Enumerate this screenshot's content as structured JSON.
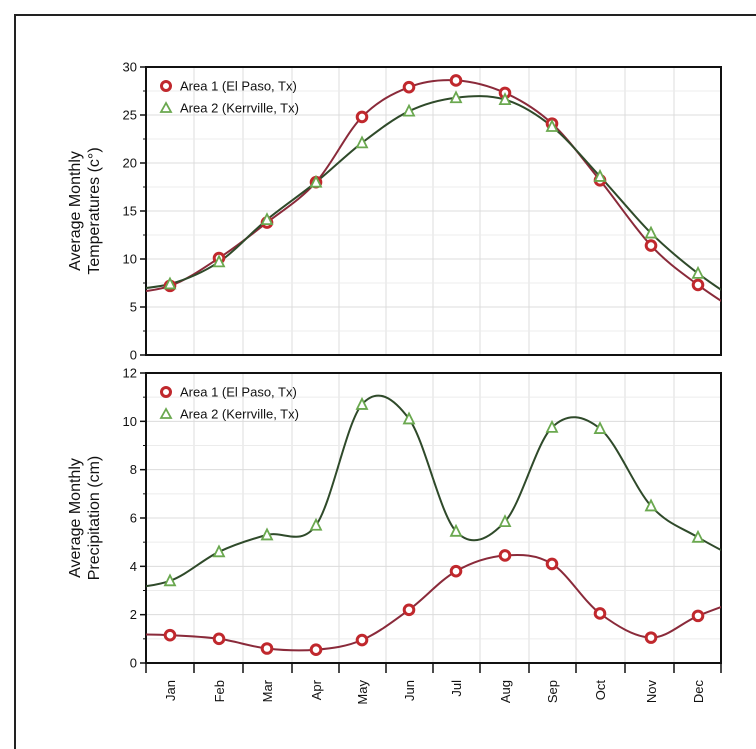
{
  "chart_data": [
    {
      "type": "line",
      "ylabel": "Average Monthly\nTemperatures (c°)",
      "ylim": [
        0,
        30
      ],
      "yticks": [
        0,
        5,
        10,
        15,
        20,
        25,
        30
      ],
      "grid": true,
      "legend": "top-left",
      "categories": [
        "Jan",
        "Feb",
        "Mar",
        "Apr",
        "May",
        "Jun",
        "Jul",
        "Aug",
        "Sep",
        "Oct",
        "Nov",
        "Dec"
      ],
      "series": [
        {
          "name": "Area 1 (El Paso, Tx)",
          "marker": "circle",
          "color": "#c0282d",
          "line_color": "#8a2a3a",
          "values": [
            7.2,
            10.1,
            13.8,
            18.0,
            24.8,
            27.9,
            28.6,
            27.3,
            24.1,
            18.2,
            11.4,
            7.3
          ]
        },
        {
          "name": "Area 2 (Kerrville, Tx)",
          "marker": "triangle",
          "color": "#6aa84f",
          "line_color": "#2f4a2a",
          "values": [
            7.4,
            9.7,
            14.1,
            18.0,
            22.1,
            25.4,
            26.8,
            26.6,
            23.8,
            18.6,
            12.7,
            8.5
          ]
        }
      ]
    },
    {
      "type": "line",
      "ylabel": "Average Monthly\nPrecipitation (cm)",
      "ylim": [
        0,
        12
      ],
      "yticks": [
        0,
        2,
        4,
        6,
        8,
        10,
        12
      ],
      "grid": true,
      "legend": "top-left",
      "categories": [
        "Jan",
        "Feb",
        "Mar",
        "Apr",
        "May",
        "Jun",
        "Jul",
        "Aug",
        "Sep",
        "Oct",
        "Nov",
        "Dec"
      ],
      "series": [
        {
          "name": "Area 1 (El Paso, Tx)",
          "marker": "circle",
          "color": "#c0282d",
          "line_color": "#8a2a3a",
          "values": [
            1.15,
            1.0,
            0.6,
            0.55,
            0.95,
            2.2,
            3.8,
            4.45,
            4.1,
            2.05,
            1.05,
            1.95
          ]
        },
        {
          "name": "Area 2 (Kerrville, Tx)",
          "marker": "triangle",
          "color": "#6aa84f",
          "line_color": "#2f4a2a",
          "values": [
            3.4,
            4.6,
            5.3,
            5.7,
            10.7,
            10.1,
            5.45,
            5.85,
            9.75,
            9.7,
            6.5,
            5.2
          ]
        }
      ]
    }
  ]
}
